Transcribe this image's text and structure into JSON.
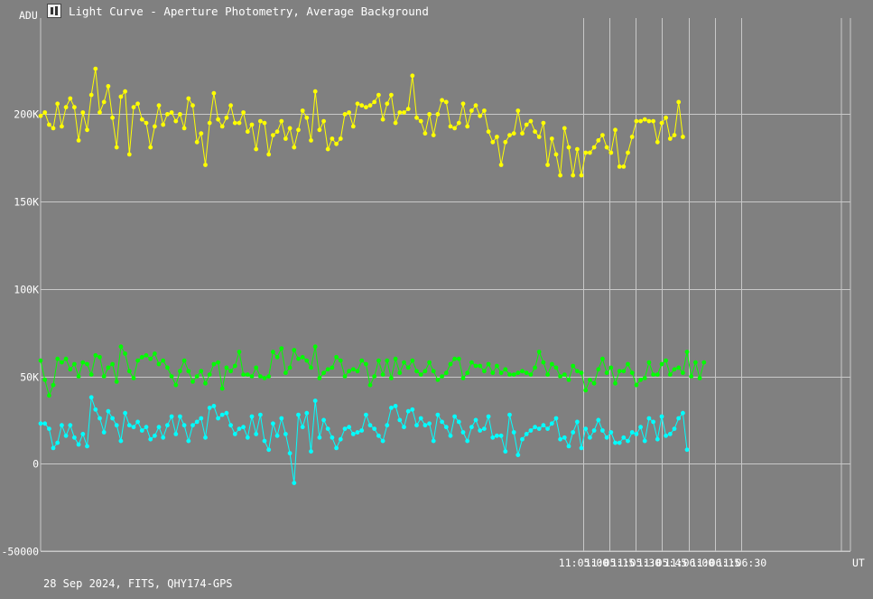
{
  "window": {
    "title": "Light Curve - Aperture Photometry, Average Background"
  },
  "footer": {
    "text": "28 Sep 2024, FITS, QHY174-GPS"
  },
  "colors": {
    "background": "#808080",
    "grid": "#c8c8c8",
    "series1": "#ffff00",
    "series2": "#00ff00",
    "series3": "#00ffff"
  },
  "chart_data": {
    "type": "line",
    "title": "Light Curve - Aperture Photometry, Average Background",
    "ylabel": "ADU",
    "xlabel": "UT",
    "ylim": [
      -50000,
      255000
    ],
    "xlim": [
      "10:59:52",
      "11:07:32"
    ],
    "grid": true,
    "y_ticks": [
      {
        "value": -50000,
        "label": "-50000"
      },
      {
        "value": 0,
        "label": "0"
      },
      {
        "value": 50000,
        "label": "50K"
      },
      {
        "value": 100000,
        "label": "100K"
      },
      {
        "value": 150000,
        "label": "150K"
      },
      {
        "value": 200000,
        "label": "200K"
      }
    ],
    "x_ticks": [
      "11:05:00",
      "11:05:15",
      "11:05:30",
      "11:05:45",
      "11:06:00",
      "11:06:15",
      "11:06:30"
    ],
    "x_start": "10:59:52",
    "x_step_seconds": 2.4,
    "series": [
      {
        "values": [
          199000,
          201000,
          194000,
          192000,
          206000,
          193000,
          204000,
          209000,
          204000,
          185000,
          201000,
          191000,
          211000,
          226000,
          201000,
          207000,
          216000,
          198000,
          181000,
          210000,
          213000,
          177000,
          204000,
          206000,
          197000,
          195000,
          181000,
          193000,
          205000,
          194000,
          200000,
          201000,
          196000,
          200000,
          192000,
          209000,
          205000,
          184000,
          189000,
          171000,
          195000,
          212000,
          197000,
          193000,
          198000,
          205000,
          195000,
          195000,
          201000,
          190000,
          194000,
          180000,
          196000,
          195000,
          177000,
          188000,
          190000,
          196000,
          186000,
          192000,
          181000,
          191000,
          202000,
          198000,
          185000,
          213000,
          191000,
          196000,
          180000,
          186000,
          183000,
          186000,
          200000,
          201000,
          193000,
          206000,
          205000,
          204000,
          205000,
          207000,
          211000,
          197000,
          206000,
          211000,
          195000,
          201000,
          201000,
          203000,
          222000,
          198000,
          196000,
          189000,
          200000,
          188000,
          200000,
          208000,
          207000,
          193000,
          192000,
          195000,
          206000,
          193000,
          202000,
          205000,
          199000,
          202000,
          190000,
          184000,
          187000,
          171000,
          184000,
          188000,
          189000,
          202000,
          189000,
          194000,
          196000,
          190000,
          187000,
          195000,
          171000,
          186000,
          177000,
          165000,
          192000,
          181000,
          165000,
          180000,
          165000,
          178000,
          178000,
          181000,
          185000,
          188000,
          181000,
          178000,
          191000,
          170000,
          170000,
          178000,
          187000,
          196000,
          196000,
          197000,
          196000,
          196000,
          184000,
          195000,
          198000,
          186000,
          188000,
          207000,
          187000
        ]
      },
      {
        "values": [
          59000,
          48000,
          39000,
          45000,
          60000,
          58000,
          60000,
          54000,
          57000,
          50000,
          58000,
          57000,
          51000,
          62000,
          61000,
          50000,
          55000,
          57000,
          47000,
          67000,
          63000,
          53000,
          49000,
          59000,
          61000,
          62000,
          60000,
          63000,
          57000,
          59000,
          55000,
          50000,
          45000,
          53000,
          59000,
          53000,
          47000,
          50000,
          53000,
          46000,
          51000,
          57000,
          58000,
          43000,
          55000,
          53000,
          56000,
          64000,
          51000,
          51000,
          50000,
          55000,
          50000,
          49000,
          50000,
          64000,
          61000,
          66000,
          52000,
          55000,
          65000,
          60000,
          61000,
          59000,
          55000,
          67000,
          49000,
          52000,
          54000,
          55000,
          61000,
          59000,
          50000,
          53000,
          54000,
          53000,
          59000,
          57000,
          45000,
          50000,
          59000,
          51000,
          59000,
          49000,
          60000,
          52000,
          58000,
          55000,
          59000,
          53000,
          51000,
          53000,
          58000,
          53000,
          48000,
          50000,
          52000,
          57000,
          60000,
          60000,
          49000,
          52000,
          58000,
          56000,
          56000,
          53000,
          57000,
          52000,
          56000,
          52000,
          54000,
          51000,
          51000,
          52000,
          53000,
          52000,
          51000,
          55000,
          64000,
          58000,
          51000,
          57000,
          55000,
          50000,
          51000,
          48000,
          56000,
          53000,
          52000,
          42000,
          48000,
          46000,
          54000,
          60000,
          52000,
          55000,
          46000,
          53000,
          53000,
          57000,
          52000,
          45000,
          48000,
          49000,
          58000,
          51000,
          51000,
          57000,
          59000,
          51000,
          54000,
          55000,
          52000,
          64000,
          50000,
          58000,
          49000,
          58000
        ]
      },
      {
        "values": [
          23000,
          23000,
          20000,
          9000,
          12000,
          22000,
          16000,
          22000,
          15000,
          11000,
          17000,
          10000,
          38000,
          31000,
          26000,
          18000,
          30000,
          26000,
          22000,
          13000,
          29000,
          22000,
          21000,
          24000,
          19000,
          21000,
          14000,
          16000,
          21000,
          15000,
          22000,
          27000,
          17000,
          27000,
          22000,
          13000,
          22000,
          24000,
          26000,
          15000,
          32000,
          33000,
          26000,
          28000,
          29000,
          22000,
          17000,
          20000,
          21000,
          15000,
          27000,
          17000,
          28000,
          13000,
          8000,
          23000,
          16000,
          26000,
          17000,
          6000,
          -11000,
          28000,
          21000,
          29000,
          7000,
          36000,
          15000,
          25000,
          20000,
          15000,
          9000,
          14000,
          20000,
          21000,
          17000,
          18000,
          19000,
          28000,
          22000,
          20000,
          16000,
          13000,
          22000,
          32000,
          33000,
          25000,
          21000,
          30000,
          31000,
          22000,
          26000,
          22000,
          23000,
          13000,
          28000,
          24000,
          21000,
          16000,
          27000,
          24000,
          18000,
          13000,
          21000,
          25000,
          19000,
          20000,
          27000,
          15000,
          16000,
          16000,
          7000,
          28000,
          18000,
          5000,
          14000,
          17000,
          19000,
          21000,
          20000,
          22000,
          20000,
          23000,
          26000,
          14000,
          15000,
          10000,
          18000,
          24000,
          9000,
          20000,
          15000,
          19000,
          25000,
          19000,
          15000,
          18000,
          12000,
          12000,
          15000,
          13000,
          18000,
          17000,
          21000,
          13000,
          26000,
          24000,
          14000,
          27000,
          16000,
          17000,
          20000,
          26000,
          29000,
          8000
        ]
      }
    ]
  }
}
